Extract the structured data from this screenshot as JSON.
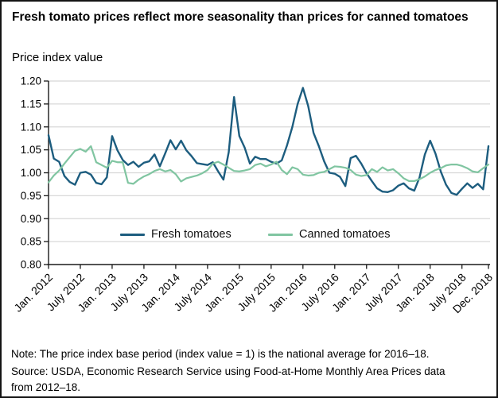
{
  "title": "Fresh tomato prices reflect more seasonality than prices for canned tomatoes",
  "y_axis_title": "Price index value",
  "legend": {
    "fresh_label": "Fresh tomatoes",
    "canned_label": "Canned tomatoes"
  },
  "note": "Note: The price index base period (index value = 1) is the national average for 2016–18.",
  "source": "Source: USDA, Economic Research Service using Food-at-Home Monthly Area Prices data from 2012–18.",
  "colors": {
    "fresh_line": "#1d5d7f",
    "canned_line": "#80c5a1",
    "gridline": "#d8d8d8",
    "axis": "#1a1a1a"
  },
  "chart_data": {
    "type": "line",
    "title": "Fresh tomato prices reflect more seasonality than prices for canned tomatoes",
    "xlabel": "",
    "ylabel": "Price index value",
    "ylim": [
      0.8,
      1.2
    ],
    "ytick_step": 0.05,
    "ytick_labels": [
      "0.80",
      "0.85",
      "0.90",
      "0.95",
      "1.00",
      "1.05",
      "1.10",
      "1.15",
      "1.20"
    ],
    "xtick_labels": [
      "Jan. 2012",
      "July 2012",
      "Jan. 2013",
      "July 2013",
      "Jan. 2014",
      "July 2014",
      "Jan. 2015",
      "July 2015",
      "Jan. 2016",
      "July 2016",
      "Jan. 2017",
      "July 2017",
      "Jan. 2018",
      "July 2018",
      "Dec. 2018"
    ],
    "xtick_month_indices": [
      0,
      6,
      12,
      18,
      24,
      30,
      36,
      42,
      48,
      54,
      60,
      66,
      72,
      78,
      83
    ],
    "x_frequency": "monthly",
    "x_start": "Jan. 2012",
    "x_end": "Dec. 2018",
    "grid": true,
    "legend_position": "inside-bottom",
    "series": [
      {
        "name": "Fresh tomatoes",
        "color": "#1d5d7f",
        "values": [
          1.082,
          1.031,
          1.024,
          0.993,
          0.98,
          0.974,
          1.0,
          1.002,
          0.996,
          0.978,
          0.975,
          0.99,
          1.08,
          1.049,
          1.028,
          1.017,
          1.024,
          1.013,
          1.022,
          1.025,
          1.04,
          1.014,
          1.042,
          1.071,
          1.051,
          1.07,
          1.049,
          1.036,
          1.021,
          1.019,
          1.017,
          1.023,
          1.003,
          0.985,
          1.045,
          1.165,
          1.08,
          1.055,
          1.02,
          1.035,
          1.03,
          1.03,
          1.024,
          1.02,
          1.027,
          1.06,
          1.1,
          1.15,
          1.185,
          1.145,
          1.087,
          1.058,
          1.025,
          1.0,
          0.998,
          0.991,
          0.971,
          1.032,
          1.037,
          1.02,
          0.999,
          0.982,
          0.966,
          0.959,
          0.958,
          0.962,
          0.972,
          0.977,
          0.966,
          0.961,
          0.99,
          1.04,
          1.07,
          1.042,
          1.003,
          0.974,
          0.956,
          0.952,
          0.965,
          0.977,
          0.967,
          0.976,
          0.964,
          1.058
        ]
      },
      {
        "name": "Canned tomatoes",
        "color": "#80c5a1",
        "values": [
          0.979,
          0.994,
          1.005,
          1.02,
          1.034,
          1.048,
          1.052,
          1.046,
          1.058,
          1.023,
          1.017,
          1.011,
          1.026,
          1.023,
          1.023,
          0.978,
          0.976,
          0.985,
          0.992,
          0.997,
          1.004,
          1.008,
          1.003,
          1.006,
          0.997,
          0.981,
          0.988,
          0.991,
          0.994,
          0.999,
          1.006,
          1.02,
          1.024,
          1.018,
          1.011,
          1.004,
          1.003,
          1.005,
          1.008,
          1.017,
          1.02,
          1.014,
          1.018,
          1.024,
          1.006,
          0.997,
          1.012,
          1.008,
          0.996,
          0.994,
          0.995,
          1.0,
          1.002,
          1.008,
          1.014,
          1.013,
          1.011,
          1.006,
          0.996,
          0.993,
          0.995,
          1.008,
          1.002,
          1.012,
          1.005,
          1.008,
          0.999,
          0.988,
          0.982,
          0.982,
          0.986,
          0.992,
          1.0,
          1.006,
          1.01,
          1.016,
          1.018,
          1.018,
          1.015,
          1.01,
          1.003,
          1.001,
          1.01,
          1.018
        ]
      }
    ]
  }
}
